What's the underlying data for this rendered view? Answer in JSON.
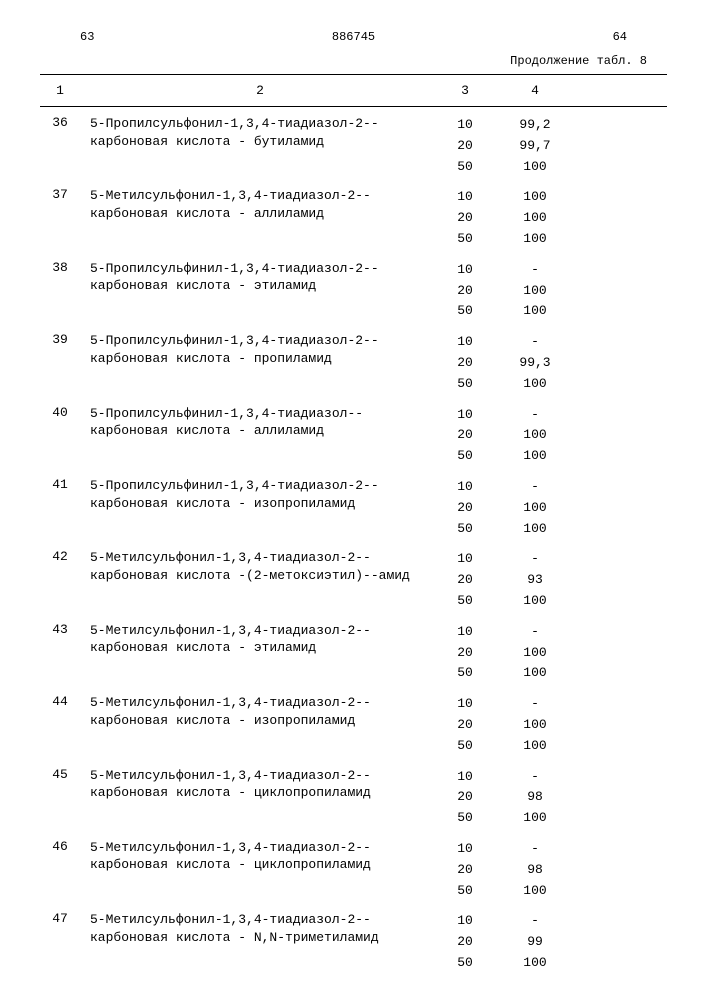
{
  "page_left": "63",
  "doc_number": "886745",
  "page_right": "64",
  "continuation": "Продолжение табл. 8",
  "columns": {
    "c1": "1",
    "c2": "2",
    "c3": "3",
    "c4": "4"
  },
  "rows": [
    {
      "n": "36",
      "name": "5-Пропилсульфонил-1,3,4-тиадиазол-2--карбоновая кислота - бутиламид",
      "vals": [
        [
          "10",
          "99,2"
        ],
        [
          "20",
          "99,7"
        ],
        [
          "50",
          "100"
        ]
      ]
    },
    {
      "n": "37",
      "name": "5-Метилсульфонил-1,3,4-тиадиазол-2--карбоновая кислота - аллиламид",
      "vals": [
        [
          "10",
          "100"
        ],
        [
          "20",
          "100"
        ],
        [
          "50",
          "100"
        ]
      ]
    },
    {
      "n": "38",
      "name": "5-Пропилсульфинил-1,3,4-тиадиазол-2--карбоновая кислота - этиламид",
      "vals": [
        [
          "10",
          "-"
        ],
        [
          "20",
          "100"
        ],
        [
          "50",
          "100"
        ]
      ]
    },
    {
      "n": "39",
      "name": "5-Пропилсульфинил-1,3,4-тиадиазол-2--карбоновая кислота - пропиламид",
      "vals": [
        [
          "10",
          "-"
        ],
        [
          "20",
          "99,3"
        ],
        [
          "50",
          "100"
        ]
      ]
    },
    {
      "n": "40",
      "name": "5-Пропилсульфинил-1,3,4-тиадиазол--карбоновая кислота - аллиламид",
      "vals": [
        [
          "10",
          "-"
        ],
        [
          "20",
          "100"
        ],
        [
          "50",
          "100"
        ]
      ]
    },
    {
      "n": "41",
      "name": "5-Пропилсульфинил-1,3,4-тиадиазол-2--карбоновая кислота - изопропиламид",
      "vals": [
        [
          "10",
          "-"
        ],
        [
          "20",
          "100"
        ],
        [
          "50",
          "100"
        ]
      ]
    },
    {
      "n": "42",
      "name": "5-Метилсульфонил-1,3,4-тиадиазол-2--карбоновая кислота -(2-метоксиэтил)--амид",
      "vals": [
        [
          "10",
          "-"
        ],
        [
          "20",
          "93"
        ],
        [
          "50",
          "100"
        ]
      ]
    },
    {
      "n": "43",
      "name": "5-Метилсульфонил-1,3,4-тиадиазол-2--карбоновая кислота - этиламид",
      "vals": [
        [
          "10",
          "-"
        ],
        [
          "20",
          "100"
        ],
        [
          "50",
          "100"
        ]
      ]
    },
    {
      "n": "44",
      "name": "5-Метилсульфонил-1,3,4-тиадиазол-2--карбоновая кислота - изопропиламид",
      "vals": [
        [
          "10",
          "-"
        ],
        [
          "20",
          "100"
        ],
        [
          "50",
          "100"
        ]
      ]
    },
    {
      "n": "45",
      "name": "5-Метилсульфонил-1,3,4-тиадиазол-2--карбоновая кислота - циклопропиламид",
      "vals": [
        [
          "10",
          "-"
        ],
        [
          "20",
          "98"
        ],
        [
          "50",
          "100"
        ]
      ]
    },
    {
      "n": "46",
      "name": "5-Метилсульфонил-1,3,4-тиадиазол-2--карбоновая кислота - циклопропиламид",
      "vals": [
        [
          "10",
          "-"
        ],
        [
          "20",
          "98"
        ],
        [
          "50",
          "100"
        ]
      ]
    },
    {
      "n": "47",
      "name": "5-Метилсульфонил-1,3,4-тиадиазол-2--карбоновая кислота - N,N-триметиламид",
      "vals": [
        [
          "10",
          "-"
        ],
        [
          "20",
          "99"
        ],
        [
          "50",
          "100"
        ]
      ]
    }
  ]
}
